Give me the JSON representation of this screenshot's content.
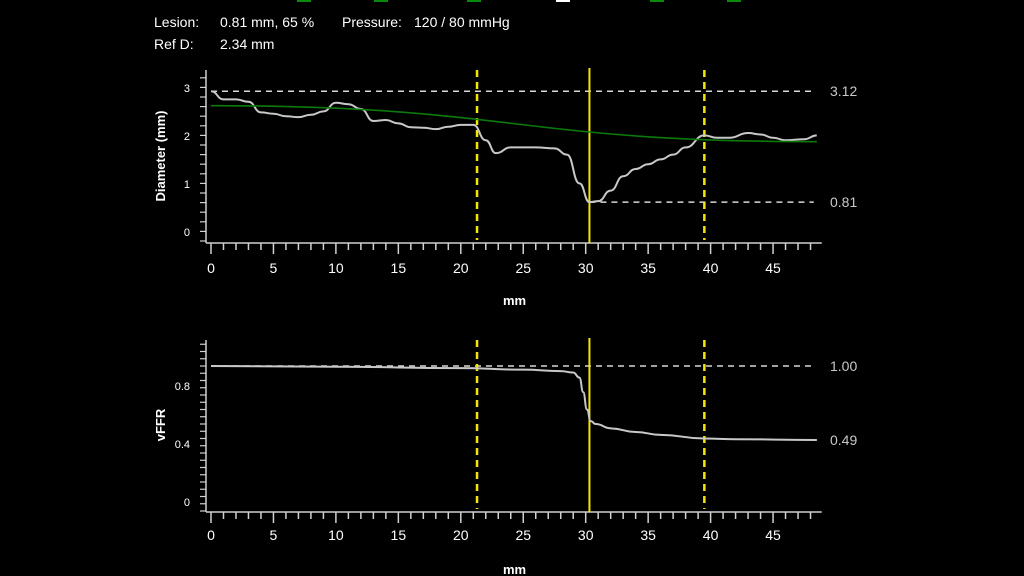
{
  "header": {
    "lesion_label": "Lesion:",
    "lesion_value": "0.81 mm, 65 %",
    "pressure_label": "Pressure:",
    "pressure_value": "120 / 80 mmHg",
    "refd_label": "Ref D:",
    "refd_value": "2.34 mm"
  },
  "top_marks": [
    "#0a8a0a",
    "#0a8a0a",
    "#0a8a0a",
    "#ffffff",
    "#0a8a0a",
    "#0a8a0a"
  ],
  "colors": {
    "curve": "#c8c8c8",
    "reference": "#0b7a0b",
    "marker": "#f5e600",
    "dashed": "#d8d8d8",
    "axis": "#d0d0d0"
  },
  "chart_data": [
    {
      "type": "line",
      "xlabel": "mm",
      "ylabel": "Diameter (mm)",
      "xlim": [
        0,
        48.9
      ],
      "ylim": [
        0,
        3.55
      ],
      "xticks": [
        0,
        5,
        10,
        15,
        20,
        25,
        30,
        35,
        40,
        45
      ],
      "yticks": [
        0,
        1,
        2,
        3
      ],
      "grid": false,
      "series": [
        {
          "x": [
            0,
            1,
            2,
            3,
            4,
            5,
            6,
            7,
            8,
            9,
            10,
            11,
            12,
            13,
            14,
            15,
            16,
            17,
            18,
            19,
            20,
            21,
            22,
            22.8,
            24,
            26,
            27.5,
            28.5,
            29.5,
            30.3,
            31,
            32,
            33,
            34,
            35,
            36,
            37,
            38,
            39.5,
            40.5,
            41.5,
            43,
            44,
            45,
            46,
            47.5,
            48.5
          ],
          "y": [
            3.12,
            2.95,
            2.95,
            2.9,
            2.68,
            2.65,
            2.6,
            2.58,
            2.63,
            2.7,
            2.88,
            2.85,
            2.75,
            2.5,
            2.52,
            2.45,
            2.37,
            2.36,
            2.33,
            2.38,
            2.42,
            2.42,
            2.1,
            1.83,
            1.95,
            1.95,
            1.93,
            1.8,
            1.2,
            0.81,
            0.83,
            1.05,
            1.35,
            1.5,
            1.6,
            1.7,
            1.8,
            1.95,
            2.2,
            2.15,
            2.15,
            2.25,
            2.22,
            2.15,
            2.1,
            2.12,
            2.2
          ]
        },
        {
          "x": [
            0,
            48.5
          ],
          "y": [
            2.82,
            2.07
          ]
        }
      ],
      "reference_lines": [
        {
          "y": 3.12,
          "label": "3.12",
          "x_from": 0
        },
        {
          "y": 0.81,
          "label": "0.81",
          "x_from": 30.3
        }
      ],
      "markers": {
        "lesion_x": 30.3,
        "start_x": 21.3,
        "end_x": 39.5
      }
    },
    {
      "type": "line",
      "xlabel": "mm",
      "ylabel": "vFFR",
      "xlim": [
        0,
        48.9
      ],
      "ylim": [
        0,
        1.2
      ],
      "xticks": [
        0,
        5,
        10,
        15,
        20,
        25,
        30,
        35,
        40,
        45
      ],
      "yticks": [
        0,
        0.4,
        0.8
      ],
      "ytick_labels": [
        "0",
        "0.4",
        "0.8"
      ],
      "grid": false,
      "series": [
        {
          "x": [
            0,
            10,
            20,
            25,
            28,
            29,
            29.5,
            29.8,
            30.1,
            30.4,
            30.8,
            32,
            34,
            36,
            39.5,
            42,
            48.5
          ],
          "y": [
            1.0,
            0.995,
            0.985,
            0.975,
            0.965,
            0.955,
            0.92,
            0.82,
            0.7,
            0.62,
            0.6,
            0.57,
            0.545,
            0.525,
            0.5,
            0.495,
            0.49
          ]
        }
      ],
      "reference_lines": [
        {
          "y": 1.0,
          "label": "1.00",
          "x_from": 0
        },
        {
          "y": 0.49,
          "label": "0.49",
          "x_from": 48.5
        }
      ],
      "markers": {
        "lesion_x": 30.3,
        "start_x": 21.3,
        "end_x": 39.5
      }
    }
  ]
}
